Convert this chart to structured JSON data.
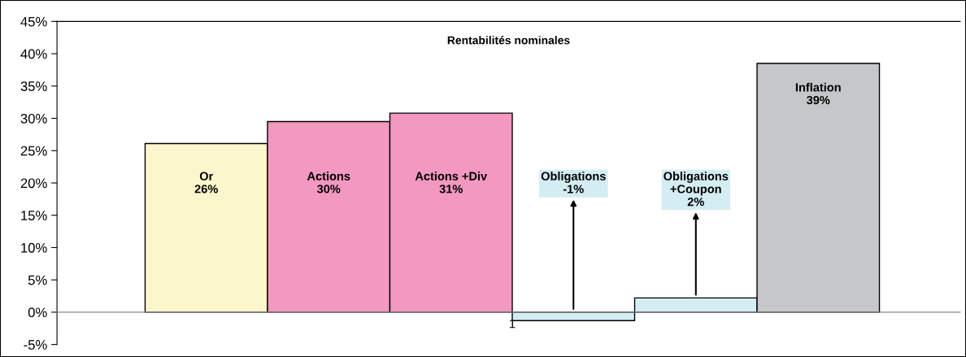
{
  "chart_data": {
    "type": "bar",
    "title": "Rentabilités nominales",
    "categories": [
      "1"
    ],
    "series": [
      {
        "name": "Or",
        "color": "#fbf6cb",
        "values": [
          26.1
        ],
        "value_labels": [
          "26%"
        ]
      },
      {
        "name": "Actions",
        "color": "#f398c0",
        "values": [
          29.5
        ],
        "value_labels": [
          "30%"
        ]
      },
      {
        "name": "Actions +Div",
        "color": "#f398c0",
        "values": [
          30.8
        ],
        "value_labels": [
          "31%"
        ]
      },
      {
        "name": "Obligations",
        "color": "#d4edf3",
        "values": [
          -1.3
        ],
        "value_labels": [
          "-1%"
        ]
      },
      {
        "name": "Obligations\n+Coupon",
        "color": "#d4edf3",
        "values": [
          2.2
        ],
        "value_labels": [
          "2%"
        ]
      },
      {
        "name": "Inflation",
        "color": "#c6c7c9",
        "values": [
          38.5
        ],
        "value_labels": [
          "39%"
        ]
      }
    ],
    "ylim": [
      -5,
      45
    ],
    "yticks": [
      {
        "value": -5,
        "label": "-5%"
      },
      {
        "value": 0,
        "label": "0%"
      },
      {
        "value": 5,
        "label": "5%"
      },
      {
        "value": 10,
        "label": "10%"
      },
      {
        "value": 15,
        "label": "15%"
      },
      {
        "value": 20,
        "label": "20%"
      },
      {
        "value": 25,
        "label": "25%"
      },
      {
        "value": 30,
        "label": "30%"
      },
      {
        "value": 35,
        "label": "35%"
      },
      {
        "value": 40,
        "label": "40%"
      },
      {
        "value": 45,
        "label": "45%"
      }
    ],
    "legend": false
  }
}
